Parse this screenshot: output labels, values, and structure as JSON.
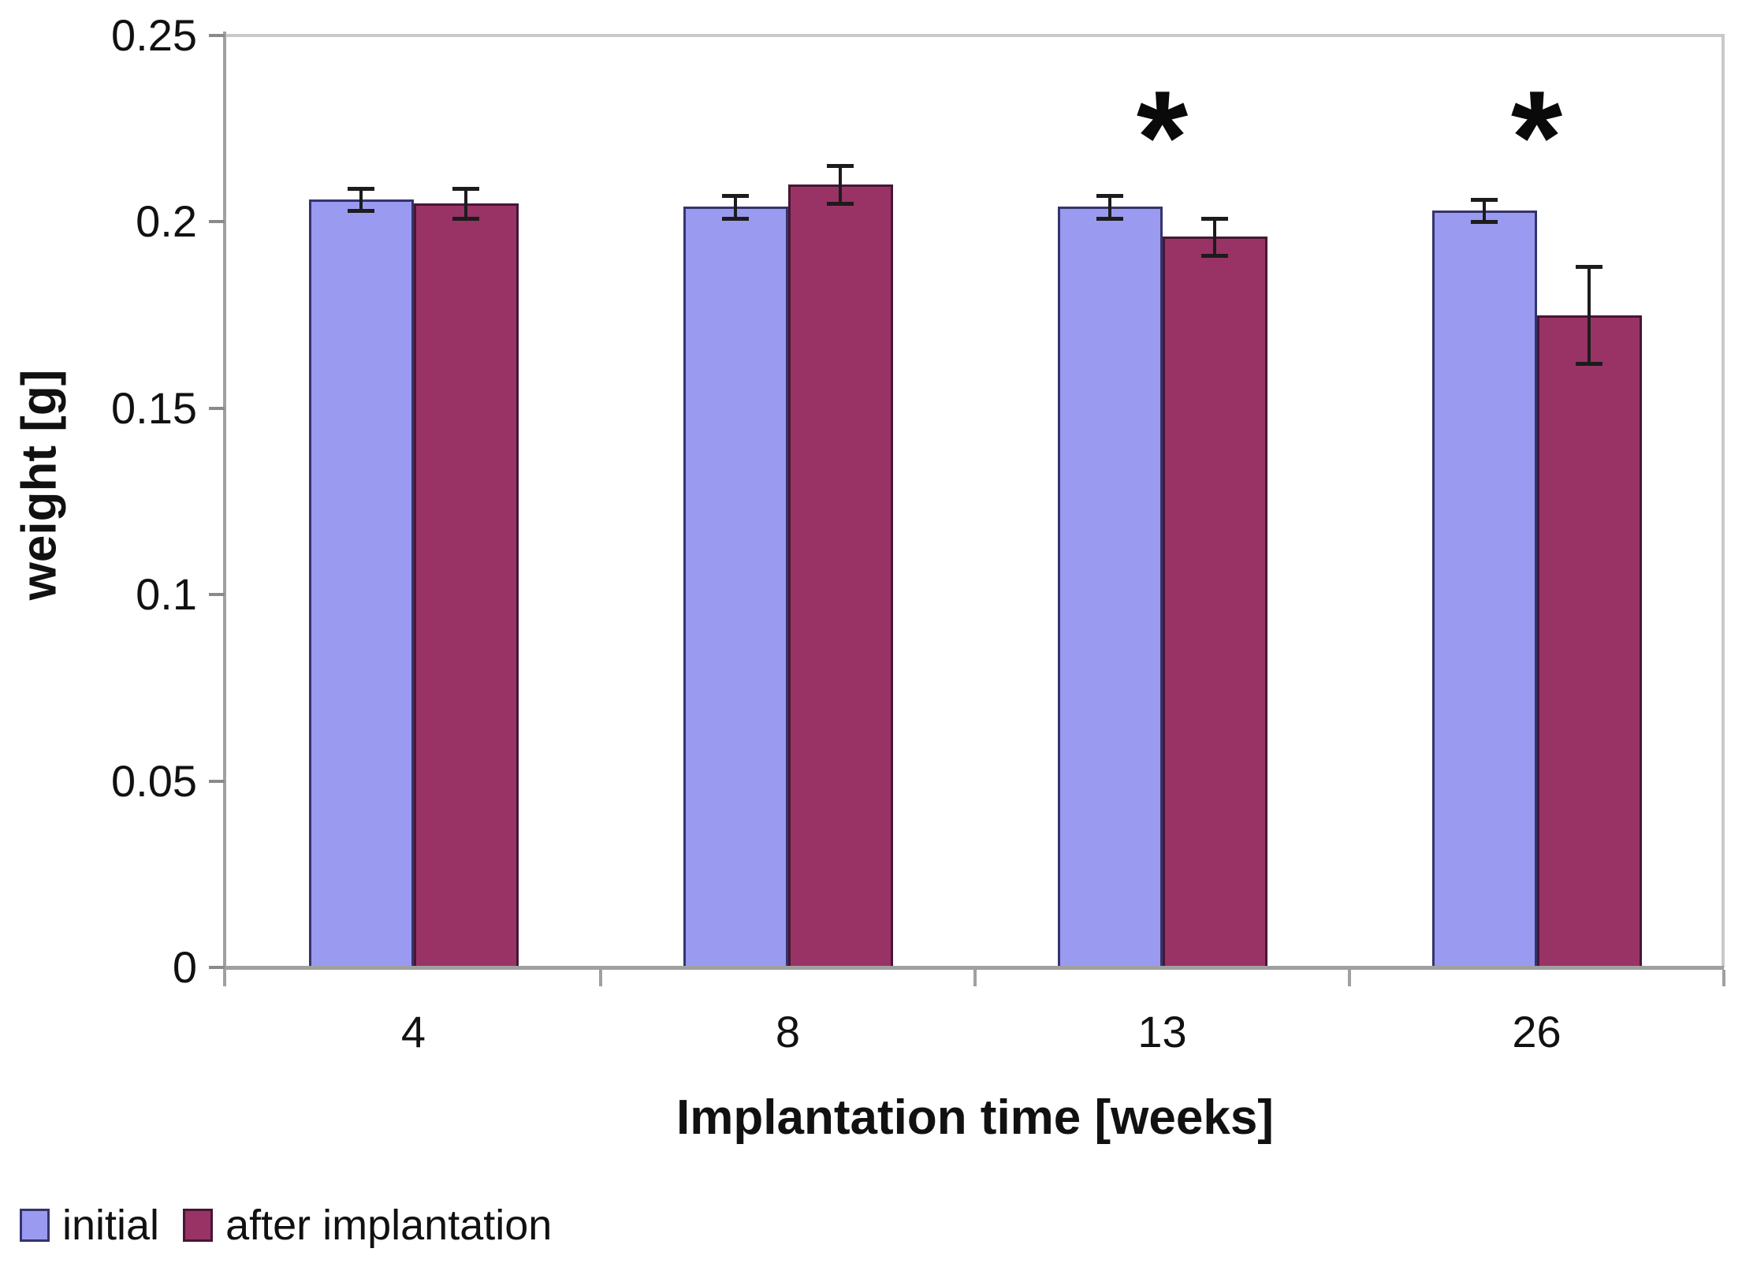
{
  "chart_data": {
    "type": "bar",
    "title": "",
    "xlabel": "Implantation time [weeks]",
    "ylabel": "weight [g]",
    "categories": [
      "4",
      "8",
      "13",
      "26"
    ],
    "series": [
      {
        "name": "initial",
        "fill_color": "#9b9af1",
        "border_color": "#34346d",
        "values": [
          0.206,
          0.204,
          0.204,
          0.203
        ],
        "errors": [
          0.003,
          0.003,
          0.003,
          0.003
        ]
      },
      {
        "name": "after implantation",
        "fill_color": "#993366",
        "border_color": "#471635",
        "values": [
          0.205,
          0.21,
          0.196,
          0.175
        ],
        "errors": [
          0.004,
          0.005,
          0.005,
          0.013
        ]
      }
    ],
    "significance": {
      "symbol": "*",
      "flagged_categories": [
        "13",
        "26"
      ]
    },
    "ylim": [
      0,
      0.25
    ],
    "yticks": [
      0,
      0.05,
      0.1,
      0.15,
      0.2,
      0.25
    ],
    "ytick_labels": [
      "0",
      "0.05",
      "0.1",
      "0.15",
      "0.2",
      "0.25"
    ],
    "grid": false,
    "legend_position": "bottom-left",
    "error_bar_color": "#1c1c1c",
    "axis_color": "#a0a0a0",
    "plot_border_color": "#c9c9c9"
  },
  "legend": {
    "items": [
      {
        "label": "initial",
        "color": "#9b9af1",
        "border": "#34346d"
      },
      {
        "label": "after implantation",
        "color": "#993366",
        "border": "#471635"
      }
    ]
  }
}
